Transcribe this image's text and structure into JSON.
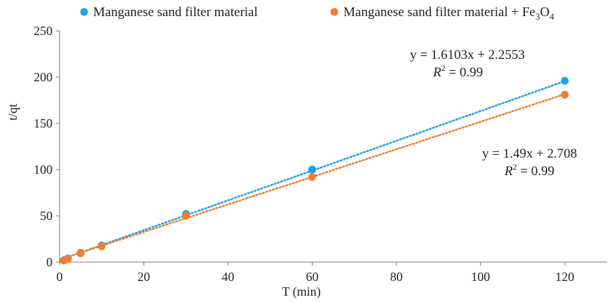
{
  "chart_data": {
    "type": "scatter",
    "xlabel": "T (min)",
    "ylabel": "t/qt",
    "xlim": [
      0,
      130
    ],
    "ylim": [
      0,
      250
    ],
    "xticks": [
      "0",
      "20",
      "40",
      "60",
      "80",
      "100",
      "120"
    ],
    "yticks": [
      "0",
      "50",
      "100",
      "150",
      "200",
      "250"
    ],
    "grid": false,
    "legend": "top",
    "series": [
      {
        "name": "Manganese sand filter material",
        "color": "#1aa3e8",
        "x": [
          1,
          2,
          5,
          10,
          30,
          60,
          120
        ],
        "y": [
          2,
          4,
          10,
          18,
          52,
          100,
          196
        ],
        "trendline": {
          "slope": 1.6103,
          "intercept": 2.2553
        },
        "equation": "y = 1.6103x + 2.2553",
        "r2": "0.99"
      },
      {
        "name_parts": [
          "Manganese sand filter material + Fe",
          "3",
          "O",
          "4"
        ],
        "color": "#f07e2e",
        "x": [
          1,
          2,
          5,
          10,
          30,
          60,
          120
        ],
        "y": [
          1.5,
          3.5,
          9.5,
          17,
          50,
          92,
          181
        ],
        "trendline": {
          "slope": 1.49,
          "intercept": 2.708
        },
        "equation": "y = 1.49x + 2.708",
        "r2": "0.99"
      }
    ]
  }
}
